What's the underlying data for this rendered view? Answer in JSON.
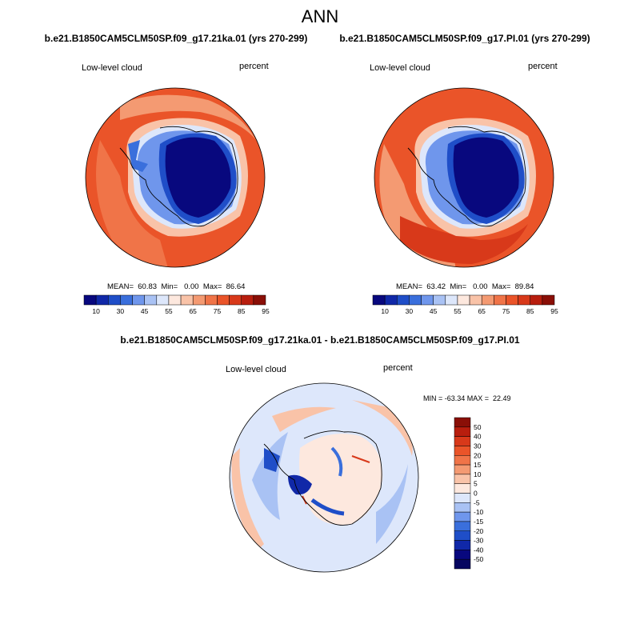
{
  "page": {
    "title": "ANN"
  },
  "panels": [
    {
      "title": "b.e21.B1850CAM5CLM50SP.f09_g17.21ka.01 (yrs 270-299)",
      "variable": "Low-level cloud",
      "units": "percent",
      "stats": "MEAN=  60.83  Min=   0.00  Max=  86.64"
    },
    {
      "title": "b.e21.B1850CAM5CLM50SP.f09_g17.PI.01 (yrs 270-299)",
      "variable": "Low-level cloud",
      "units": "percent",
      "stats": "MEAN=  63.42  Min=   0.00  Max=  89.84"
    }
  ],
  "diff_panel": {
    "title": "b.e21.B1850CAM5CLM50SP.f09_g17.21ka.01 - b.e21.B1850CAM5CLM50SP.f09_g17.PI.01",
    "variable": "Low-level cloud",
    "units": "percent",
    "stats": "MIN = -63.34 MAX =  22.49"
  },
  "colorbar_main": {
    "labels": [
      "10",
      "30",
      "45",
      "55",
      "65",
      "75",
      "85",
      "95"
    ],
    "colors": [
      "#08087e",
      "#1028a8",
      "#1f4ec8",
      "#3a6fdc",
      "#6f96ec",
      "#a9c2f4",
      "#dde7fb",
      "#fde8de",
      "#f9c3a8",
      "#f49a72",
      "#f07448",
      "#ea5429",
      "#d8391a",
      "#b81e0e",
      "#8a0f07"
    ]
  },
  "colorbar_diff": {
    "labels": [
      "50",
      "40",
      "30",
      "20",
      "15",
      "10",
      "5",
      "0",
      "-5",
      "-10",
      "-15",
      "-20",
      "-30",
      "-40",
      "-50"
    ],
    "colors": [
      "#8a0f07",
      "#b81e0e",
      "#d8391a",
      "#ea5429",
      "#f07448",
      "#f49a72",
      "#f9c3a8",
      "#fde8de",
      "#dde7fb",
      "#a9c2f4",
      "#6f96ec",
      "#3a6fdc",
      "#1f4ec8",
      "#1028a8",
      "#08087e",
      "#060660"
    ]
  }
}
